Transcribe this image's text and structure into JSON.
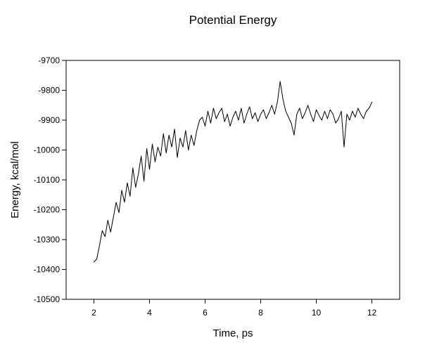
{
  "chart_data": {
    "type": "line",
    "title": "Potential Energy",
    "xlabel": "Time, ps",
    "ylabel": "Energy, kcal/mol",
    "xlim": [
      1,
      13
    ],
    "ylim": [
      -10500,
      -9700
    ],
    "xticks": [
      2,
      4,
      6,
      8,
      10,
      12
    ],
    "yticks": [
      -10500,
      -10400,
      -10300,
      -10200,
      -10100,
      -10000,
      -9900,
      -9800,
      -9700
    ],
    "grid": false,
    "legend": "none",
    "series": [
      {
        "color": "#000000",
        "x": [
          2.0,
          2.1,
          2.2,
          2.3,
          2.4,
          2.5,
          2.6,
          2.7,
          2.8,
          2.9,
          3.0,
          3.1,
          3.2,
          3.3,
          3.4,
          3.5,
          3.6,
          3.7,
          3.8,
          3.9,
          4.0,
          4.1,
          4.2,
          4.3,
          4.4,
          4.5,
          4.6,
          4.7,
          4.8,
          4.9,
          5.0,
          5.1,
          5.2,
          5.3,
          5.4,
          5.5,
          5.6,
          5.7,
          5.8,
          5.9,
          6.0,
          6.1,
          6.2,
          6.3,
          6.4,
          6.5,
          6.6,
          6.7,
          6.8,
          6.9,
          7.0,
          7.1,
          7.2,
          7.3,
          7.4,
          7.5,
          7.6,
          7.7,
          7.8,
          7.9,
          8.0,
          8.1,
          8.2,
          8.3,
          8.4,
          8.5,
          8.6,
          8.7,
          8.8,
          8.9,
          9.0,
          9.1,
          9.2,
          9.3,
          9.4,
          9.5,
          9.6,
          9.7,
          9.8,
          9.9,
          10.0,
          10.1,
          10.2,
          10.3,
          10.4,
          10.5,
          10.6,
          10.7,
          10.8,
          10.9,
          11.0,
          11.1,
          11.2,
          11.3,
          11.4,
          11.5,
          11.6,
          11.7,
          11.8,
          11.9,
          12.0
        ],
        "y": [
          -10375,
          -10365,
          -10320,
          -10270,
          -10290,
          -10235,
          -10275,
          -10225,
          -10175,
          -10210,
          -10135,
          -10175,
          -10110,
          -10155,
          -10060,
          -10125,
          -10080,
          -10020,
          -10105,
          -9995,
          -10065,
          -9980,
          -10040,
          -9990,
          -10020,
          -9945,
          -10010,
          -9950,
          -9990,
          -9930,
          -10025,
          -9960,
          -9990,
          -9935,
          -10000,
          -9950,
          -9985,
          -9935,
          -9900,
          -9890,
          -9920,
          -9870,
          -9910,
          -9860,
          -9895,
          -9875,
          -9860,
          -9905,
          -9880,
          -9920,
          -9890,
          -9870,
          -9900,
          -9860,
          -9910,
          -9880,
          -9855,
          -9895,
          -9875,
          -9905,
          -9880,
          -9865,
          -9895,
          -9875,
          -9850,
          -9880,
          -9840,
          -9770,
          -9830,
          -9870,
          -9890,
          -9910,
          -9950,
          -9880,
          -9860,
          -9895,
          -9875,
          -9850,
          -9880,
          -9905,
          -9865,
          -9885,
          -9900,
          -9870,
          -9895,
          -9865,
          -9880,
          -9910,
          -9895,
          -9870,
          -9990,
          -9880,
          -9900,
          -9870,
          -9890,
          -9860,
          -9880,
          -9895,
          -9870,
          -9860,
          -9840
        ]
      }
    ]
  }
}
